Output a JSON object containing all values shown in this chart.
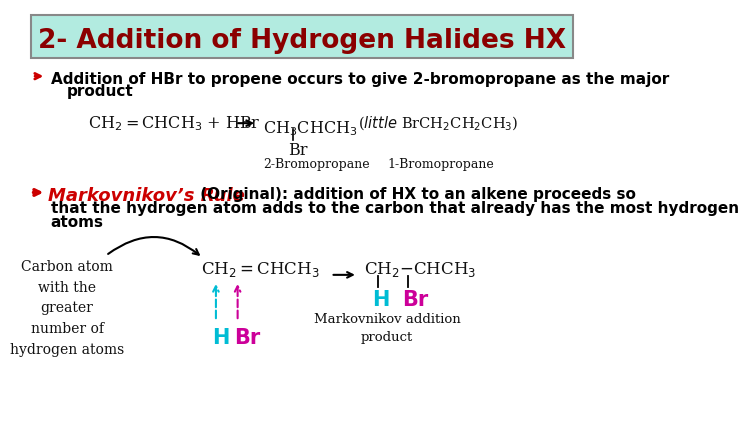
{
  "title": "2- Addition of Hydrogen Halides HX",
  "title_bg": "#b2ebe0",
  "title_border": "#888888",
  "title_color": "#8b0000",
  "bullet_color": "#cc0000",
  "section1_line1": "Addition of HBr to propene occurs to give 2-bromopropane as the major",
  "section1_line2": "product",
  "markov_bold_italic": "Markovnikov’s Rule",
  "markov_rest": " (Original): addition of HX to an alkene proceeds so",
  "markov_line2": "that the hydrogen atom adds to the carbon that already has the most hydrogen",
  "markov_line3": "atoms",
  "bg_color": "#ffffff",
  "body_text_color": "#000000",
  "red_color": "#cc0000",
  "H_color": "#00bcd4",
  "Br_color": "#cc0099",
  "left_text": "Carbon atom\nwith the\ngreater\nnumber of\nhydrogen atoms",
  "markov_label": "Markovnikov addition\nproduct"
}
